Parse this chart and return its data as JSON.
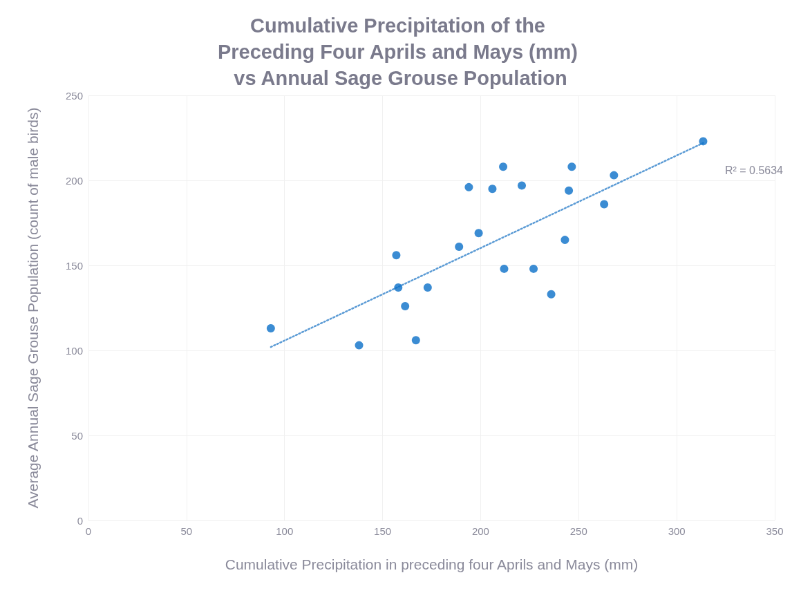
{
  "chart_data": {
    "type": "scatter",
    "title": "Cumulative Precipitation of the Preceding Four Aprils and Mays (mm) vs Annual Sage Grouse Population",
    "xlabel": "Cumulative Precipitation in preceding four Aprils and Mays (mm)",
    "ylabel": "Average Annual Sage Grouse Population (count of male birds)",
    "xlim": [
      0,
      350
    ],
    "xticks": [
      0,
      50,
      100,
      150,
      200,
      250,
      300,
      350
    ],
    "ylim": [
      0,
      250
    ],
    "yticks": [
      0,
      50,
      100,
      150,
      200,
      250
    ],
    "grid": true,
    "marker": "circle",
    "series": [
      {
        "color": "#0a6fc8",
        "x": [
          93,
          138,
          157,
          158,
          161.5,
          167,
          173,
          189,
          194,
          199,
          206,
          211.5,
          212,
          221,
          227,
          236,
          243,
          245,
          246.5,
          263,
          268,
          313.5
        ],
        "values": [
          113,
          103,
          156,
          137,
          126,
          106,
          137,
          161,
          196,
          169,
          195,
          208,
          148,
          197,
          148,
          133,
          165,
          194,
          208,
          186,
          203,
          223
        ]
      },
      {
        "type": "line",
        "color": "#5b9bd5",
        "line_style": "dotted",
        "marker": "none",
        "x": [
          93,
          313.5
        ],
        "values": [
          102,
          222
        ]
      }
    ],
    "annotations": [
      "R² = 0.5634"
    ]
  }
}
